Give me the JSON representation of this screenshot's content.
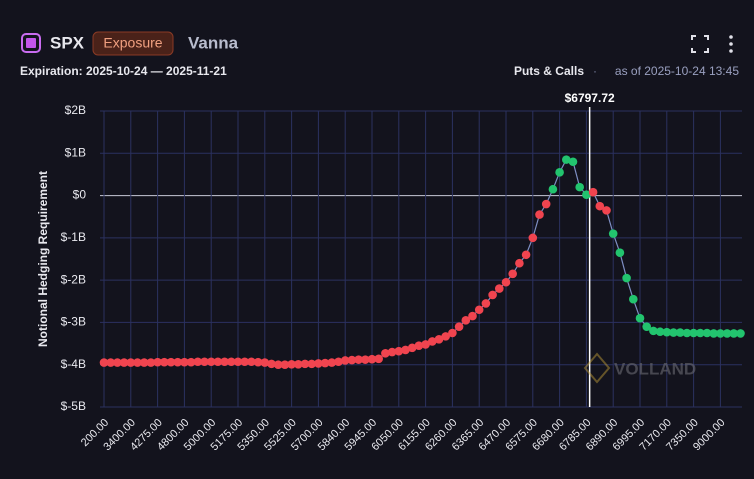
{
  "header": {
    "symbol": "SPX",
    "badge": "Exposure",
    "metric": "Vanna",
    "expiration": "Expiration: 2025-10-24 — 2025-11-21",
    "mode": "Puts & Calls",
    "separator": "·",
    "as_of": "as of 2025-10-24 13:45"
  },
  "chart_data": {
    "type": "scatter-line",
    "y_label": "Notional Hedging Requirement",
    "watermark": "VOLLAND",
    "categories": [
      "200.00",
      null,
      null,
      null,
      "3400.00",
      null,
      null,
      null,
      "4275.00",
      null,
      null,
      null,
      "4800.00",
      null,
      null,
      null,
      "5000.00",
      null,
      null,
      null,
      "5175.00",
      null,
      null,
      null,
      "5350.00",
      null,
      null,
      null,
      "5525.00",
      null,
      null,
      null,
      "5700.00",
      null,
      null,
      null,
      "5840.00",
      null,
      null,
      null,
      "5945.00",
      null,
      null,
      null,
      "6050.00",
      null,
      null,
      null,
      "6155.00",
      null,
      null,
      null,
      "6260.00",
      null,
      null,
      null,
      "6365.00",
      null,
      null,
      null,
      "6470.00",
      null,
      null,
      null,
      "6575.00",
      null,
      null,
      null,
      "6680.00",
      null,
      null,
      null,
      "6785.00",
      null,
      null,
      null,
      "6890.00",
      null,
      null,
      null,
      "6995.00",
      null,
      null,
      null,
      "7170.00",
      null,
      null,
      null,
      "7350.00",
      null,
      null,
      null,
      "9000.00",
      null,
      null,
      null
    ],
    "values": [
      -3.95,
      -3.95,
      -3.95,
      -3.95,
      -3.95,
      -3.95,
      -3.95,
      -3.95,
      -3.94,
      -3.94,
      -3.94,
      -3.94,
      -3.94,
      -3.94,
      -3.93,
      -3.93,
      -3.93,
      -3.93,
      -3.93,
      -3.93,
      -3.93,
      -3.93,
      -3.93,
      -3.94,
      -3.95,
      -3.98,
      -4.0,
      -4.0,
      -3.99,
      -3.99,
      -3.98,
      -3.98,
      -3.97,
      -3.96,
      -3.95,
      -3.93,
      -3.9,
      -3.89,
      -3.88,
      -3.88,
      -3.87,
      -3.86,
      -3.73,
      -3.7,
      -3.68,
      -3.65,
      -3.6,
      -3.55,
      -3.52,
      -3.45,
      -3.4,
      -3.33,
      -3.25,
      -3.1,
      -2.95,
      -2.85,
      -2.7,
      -2.55,
      -2.35,
      -2.2,
      -2.05,
      -1.85,
      -1.6,
      -1.4,
      -1.0,
      -0.45,
      -0.2,
      0.15,
      0.55,
      0.85,
      0.8,
      0.2,
      0.02,
      0.08,
      -0.25,
      -0.35,
      -0.9,
      -1.35,
      -1.95,
      -2.45,
      -2.9,
      -3.1,
      -3.2,
      -3.22,
      -3.23,
      -3.24,
      -3.24,
      -3.25,
      -3.25,
      -3.25,
      -3.25,
      -3.26,
      -3.26,
      -3.26,
      -3.26,
      -3.26
    ],
    "point_colors": [
      "#f0444f",
      "#f0444f",
      "#f0444f",
      "#f0444f",
      "#f0444f",
      "#f0444f",
      "#f0444f",
      "#f0444f",
      "#f0444f",
      "#f0444f",
      "#f0444f",
      "#f0444f",
      "#f0444f",
      "#f0444f",
      "#f0444f",
      "#f0444f",
      "#f0444f",
      "#f0444f",
      "#f0444f",
      "#f0444f",
      "#f0444f",
      "#f0444f",
      "#f0444f",
      "#f0444f",
      "#f0444f",
      "#f0444f",
      "#f0444f",
      "#f0444f",
      "#f0444f",
      "#f0444f",
      "#f0444f",
      "#f0444f",
      "#f0444f",
      "#f0444f",
      "#f0444f",
      "#f0444f",
      "#f0444f",
      "#f0444f",
      "#f0444f",
      "#f0444f",
      "#f0444f",
      "#f0444f",
      "#f0444f",
      "#f0444f",
      "#f0444f",
      "#f0444f",
      "#f0444f",
      "#f0444f",
      "#f0444f",
      "#f0444f",
      "#f0444f",
      "#f0444f",
      "#f0444f",
      "#f0444f",
      "#f0444f",
      "#f0444f",
      "#f0444f",
      "#f0444f",
      "#f0444f",
      "#f0444f",
      "#f0444f",
      "#f0444f",
      "#f0444f",
      "#f0444f",
      "#f0444f",
      "#f0444f",
      "#f0444f",
      "#22c46e",
      "#22c46e",
      "#22c46e",
      "#22c46e",
      "#22c46e",
      "#22c46e",
      "#f0444f",
      "#f0444f",
      "#f0444f",
      "#22c46e",
      "#22c46e",
      "#22c46e",
      "#22c46e",
      "#22c46e",
      "#22c46e",
      "#22c46e",
      "#22c46e",
      "#22c46e",
      "#22c46e",
      "#22c46e",
      "#22c46e",
      "#22c46e",
      "#22c46e",
      "#22c46e",
      "#22c46e",
      "#22c46e",
      "#22c46e",
      "#22c46e",
      "#22c46e"
    ],
    "line_color": "#7f8fc4",
    "ylim": [
      -5,
      2
    ],
    "yticks": [
      {
        "value": -5,
        "label": "$-5B"
      },
      {
        "value": -4,
        "label": "$-4B"
      },
      {
        "value": -3,
        "label": "$-3B"
      },
      {
        "value": -2,
        "label": "$-2B"
      },
      {
        "value": -1,
        "label": "$-1B"
      },
      {
        "value": 0,
        "label": "$0"
      },
      {
        "value": 1,
        "label": "$1B"
      },
      {
        "value": 2,
        "label": "$2B"
      }
    ],
    "grid": true,
    "spot": {
      "value": 6797.72,
      "label": "$6797.72"
    }
  }
}
